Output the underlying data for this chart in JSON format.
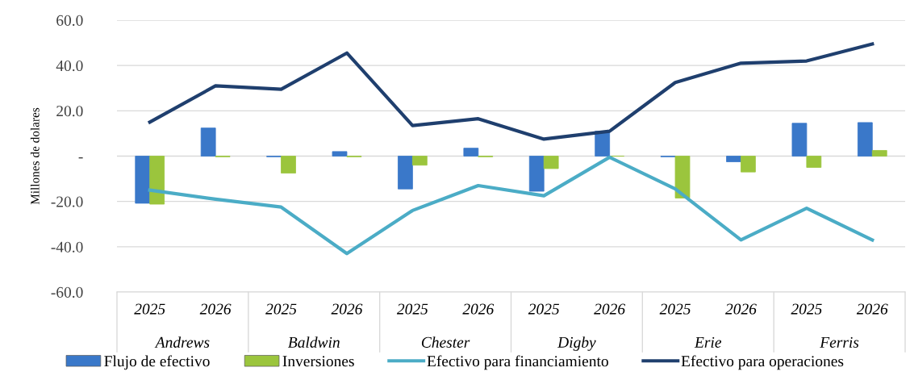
{
  "chart_data": {
    "type": "bar",
    "ylabel": "Millones de dolares",
    "categories": [
      "2025",
      "2026",
      "2025",
      "2026",
      "2025",
      "2026",
      "2025",
      "2026",
      "2025",
      "2026",
      "2025",
      "2026"
    ],
    "annotations": [
      "Andrews",
      "Baldwin",
      "Chester",
      "Digby",
      "Erie",
      "Ferris"
    ],
    "series": [
      {
        "name": "Flujo de efectivo",
        "color": "#3a78c9",
        "values": [
          -20.8,
          12.4,
          -0.3,
          2.0,
          -14.5,
          3.5,
          -15.5,
          11.0,
          -0.3,
          -2.5,
          14.5,
          14.8
        ]
      },
      {
        "name": "Inversiones",
        "color": "#9bc53d",
        "values": [
          -21.2,
          -0.3,
          -7.5,
          -0.3,
          -4.0,
          -0.3,
          -5.5,
          0.0,
          -18.5,
          -7.0,
          -5.0,
          2.5
        ]
      },
      {
        "name": "Efectivo para financiamiento",
        "type": "line",
        "color": "#4bacc6",
        "values": [
          -15.0,
          -19.0,
          -22.5,
          -43.0,
          -24.0,
          -13.0,
          -17.5,
          -0.5,
          -14.5,
          -37.0,
          -23.0,
          -37.0
        ]
      },
      {
        "name": "Efectivo para operaciones",
        "type": "line",
        "color": "#1f3f6e",
        "values": [
          15.0,
          31.0,
          29.5,
          45.5,
          13.5,
          16.5,
          7.5,
          11.0,
          32.5,
          41.0,
          42.0,
          49.5
        ]
      }
    ],
    "ylim": [
      -60,
      60
    ],
    "yticks": [
      {
        "value": -60,
        "label": "-60.0"
      },
      {
        "value": -40,
        "label": "-40.0"
      },
      {
        "value": -20,
        "label": "-20.0"
      },
      {
        "value": 0,
        "label": "-"
      },
      {
        "value": 20,
        "label": "20.0"
      },
      {
        "value": 40,
        "label": "40.0"
      },
      {
        "value": 60,
        "label": "60.0"
      }
    ],
    "grid": "y",
    "legend": "bottom",
    "marker": "none",
    "line_style": "solid"
  }
}
